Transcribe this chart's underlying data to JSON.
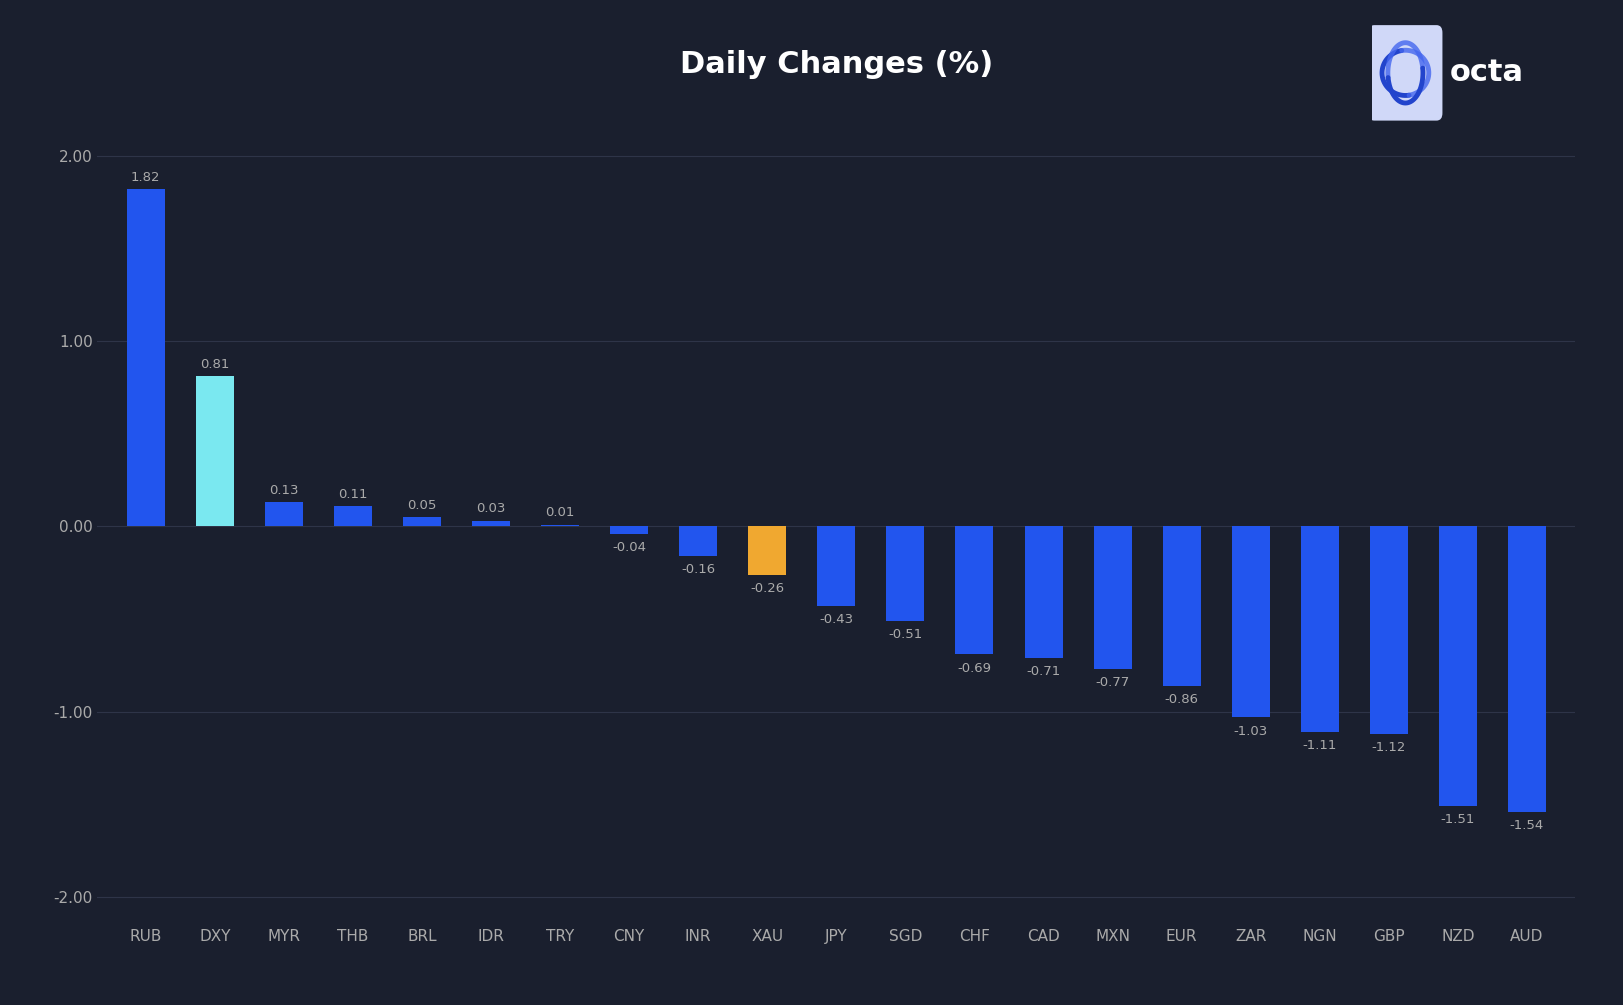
{
  "categories": [
    "RUB",
    "DXY",
    "MYR",
    "THB",
    "BRL",
    "IDR",
    "TRY",
    "CNY",
    "INR",
    "XAU",
    "JPY",
    "SGD",
    "CHF",
    "CAD",
    "MXN",
    "EUR",
    "ZAR",
    "NGN",
    "GBP",
    "NZD",
    "AUD"
  ],
  "values": [
    1.82,
    0.81,
    0.13,
    0.11,
    0.05,
    0.03,
    0.01,
    -0.04,
    -0.16,
    -0.26,
    -0.43,
    -0.51,
    -0.69,
    -0.71,
    -0.77,
    -0.86,
    -1.03,
    -1.11,
    -1.12,
    -1.51,
    -1.54
  ],
  "bar_colors": [
    "#2255ee",
    "#7ae8f0",
    "#2255ee",
    "#2255ee",
    "#2255ee",
    "#2255ee",
    "#2255ee",
    "#2255ee",
    "#2255ee",
    "#f0a830",
    "#2255ee",
    "#2255ee",
    "#2255ee",
    "#2255ee",
    "#2255ee",
    "#2255ee",
    "#2255ee",
    "#2255ee",
    "#2255ee",
    "#2255ee",
    "#2255ee"
  ],
  "title": "Daily Changes (%)",
  "title_fontsize": 22,
  "title_color": "#ffffff",
  "tick_label_color": "#aaaaaa",
  "value_label_color": "#aaaaaa",
  "background_color": "#1a1f2e",
  "grid_color": "#2e3448",
  "ylim": [
    -2.15,
    2.3
  ],
  "yticks": [
    -2.0,
    -1.0,
    0.0,
    1.0,
    2.0
  ],
  "bar_width": 0.55
}
